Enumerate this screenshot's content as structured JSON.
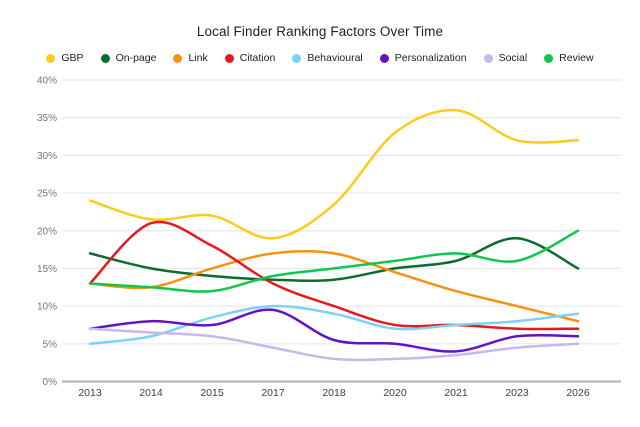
{
  "title": "Local Finder Ranking Factors Over Time",
  "chart_data": {
    "type": "line",
    "smooth": true,
    "grid": true,
    "legend_position": "top",
    "title": "Local Finder Ranking Factors Over Time",
    "xlabel": "",
    "ylabel": "",
    "ylim": [
      0,
      40
    ],
    "y_tick_values": [
      0,
      5,
      10,
      15,
      20,
      25,
      30,
      35,
      40
    ],
    "y_tick_labels": [
      "0%",
      "5%",
      "10%",
      "15%",
      "20%",
      "25%",
      "30%",
      "35%",
      "40%"
    ],
    "categories": [
      "2013",
      "2014",
      "2015",
      "2017",
      "2018",
      "2020",
      "2021",
      "2023",
      "2026"
    ],
    "series": [
      {
        "name": "GBP",
        "color": "#fccb1b",
        "values": [
          24,
          21.5,
          22,
          19,
          23.5,
          33,
          36,
          32,
          32
        ]
      },
      {
        "name": "On-page",
        "color": "#0c6b2e",
        "values": [
          17,
          15,
          14,
          13.5,
          13.5,
          15,
          16,
          19,
          15
        ]
      },
      {
        "name": "Link",
        "color": "#f6920f",
        "values": [
          13,
          12.5,
          15,
          17,
          17,
          14.5,
          12,
          10,
          8
        ]
      },
      {
        "name": "Citation",
        "color": "#e41a20",
        "values": [
          13,
          21,
          18,
          13,
          10,
          7.5,
          7.5,
          7,
          7
        ]
      },
      {
        "name": "Behavioural",
        "color": "#7cd2f5",
        "values": [
          5,
          6,
          8.5,
          10,
          9,
          7,
          7.5,
          8,
          9
        ]
      },
      {
        "name": "Personalization",
        "color": "#6313c6",
        "values": [
          7,
          8,
          7.5,
          9.5,
          5.5,
          5,
          4,
          6,
          6
        ]
      },
      {
        "name": "Social",
        "color": "#c8b7ef",
        "values": [
          7,
          6.5,
          6,
          4.5,
          3,
          3,
          3.5,
          4.5,
          5
        ]
      },
      {
        "name": "Review",
        "color": "#0fc64e",
        "values": [
          13,
          12.5,
          12,
          14,
          15,
          16,
          17,
          16,
          20
        ]
      }
    ]
  },
  "axis_colors": {
    "gridline": "#e8e8e8",
    "baseline": "#b1b1b1",
    "y_label": "#757575",
    "x_label": "#3c4043"
  }
}
